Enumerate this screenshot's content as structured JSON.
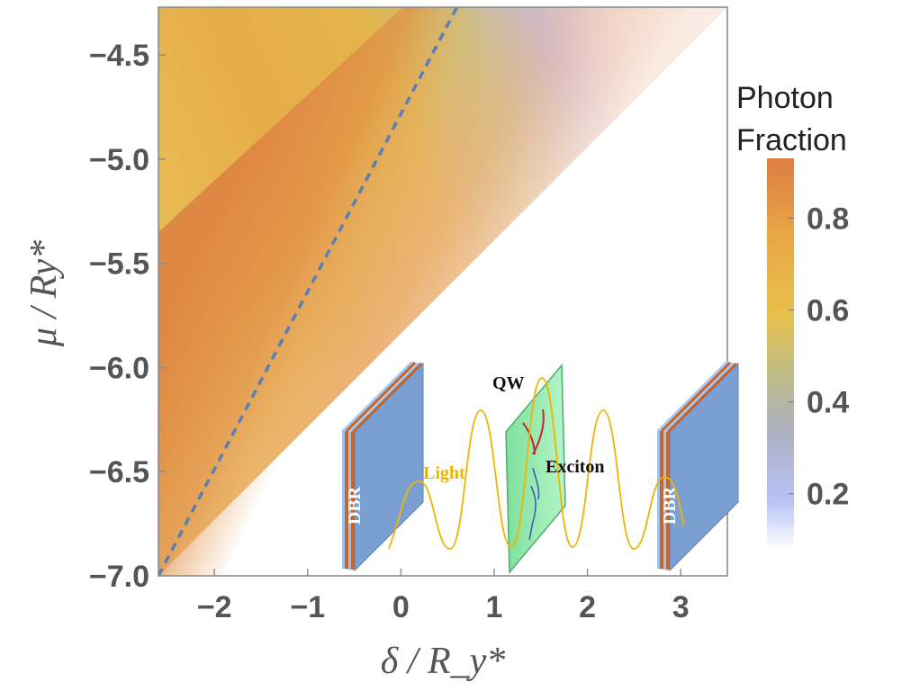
{
  "chart_data": {
    "type": "heatmap",
    "title": "",
    "xlabel": "δ / R_y*",
    "ylabel": "μ / Ry*",
    "xlim": [
      -2.6,
      3.5
    ],
    "ylim": [
      -7.0,
      -4.27
    ],
    "xticks": [
      "−2",
      "−1",
      "0",
      "1",
      "2",
      "3"
    ],
    "xtick_values": [
      -2,
      -1,
      0,
      1,
      2,
      3
    ],
    "yticks": [
      "−4.5",
      "−5.0",
      "−5.5",
      "−6.0",
      "−6.5",
      "−7.0"
    ],
    "ytick_values": [
      -4.5,
      -5.0,
      -5.5,
      -6.0,
      -6.5,
      -7.0
    ],
    "grid": false,
    "colorbar": {
      "title_line1": "Photon",
      "title_line2": "Fraction",
      "range": [
        0.08,
        0.93
      ],
      "ticks": [
        "0.8",
        "0.6",
        "0.4",
        "0.2"
      ],
      "tick_values": [
        0.8,
        0.6,
        0.4,
        0.2
      ],
      "colormap": [
        "#ffffff",
        "#b7c3f6",
        "#aeb0c2",
        "#bfbc85",
        "#e7c04d",
        "#e9a745",
        "#dd7d43"
      ],
      "placement": "right"
    },
    "region": {
      "lower_boundary": [
        [
          -2.6,
          -7.0
        ],
        [
          3.5,
          -4.27
        ]
      ],
      "description_values": "photon fraction ≈0.6–0.9 on the left, peaks along dashed line, drops toward ~0.1 at upper right"
    },
    "dashed_line": {
      "points": [
        [
          -2.6,
          -7.0
        ],
        [
          0.6,
          -4.27
        ]
      ],
      "color": "#5b7fb3"
    },
    "inset": {
      "labels": {
        "dbr_left": "DBR",
        "dbr_right": "DBR",
        "light": "Light",
        "qw": "QW",
        "exciton": "Exciton"
      },
      "colors": {
        "light": "#f0b400",
        "dbr_face": "#7b9fd1",
        "dbr_stripe": "#c8662a",
        "qw_face": "#9ff0b8"
      }
    }
  }
}
